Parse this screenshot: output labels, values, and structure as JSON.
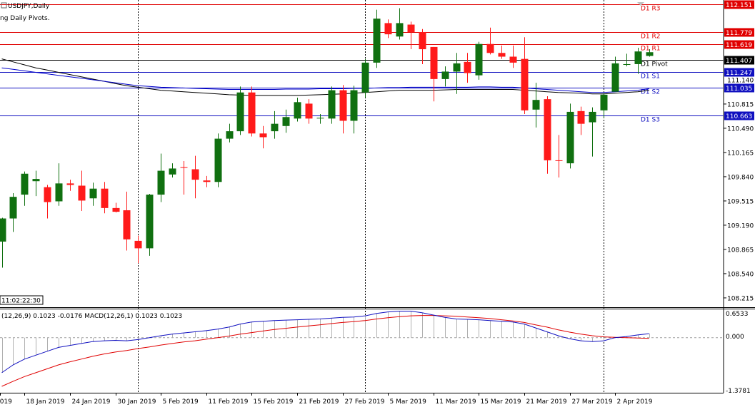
{
  "header": {
    "symbol_timeframe": "USDJPY,Daily",
    "indicator_name": "ng Daily Pivots.",
    "time_marker": "11:02:22:30"
  },
  "macd": {
    "label": "(12,26,9) 0.1023 -0.0176 MACD(12,26,1) 0.1023 0.1023",
    "ticks": [
      "0.6533",
      "0.000",
      "-1.3781"
    ]
  },
  "colors": {
    "bull": "#107010",
    "bear": "#ff1a1a",
    "resistance": "#e00000",
    "support": "#1010c0",
    "ma_black": "#000000",
    "ma_blue": "#0000c8",
    "macd_signal": "#e00000",
    "macd_main": "#1010c0"
  },
  "chart_data": {
    "type": "candlestick",
    "price_ticks": [
      "110.815",
      "110.490",
      "110.165",
      "109.840",
      "109.515",
      "109.190",
      "108.865",
      "108.540",
      "108.215"
    ],
    "date_labels": [
      "18 Jan 2019",
      "24 Jan 2019",
      "30 Jan 2019",
      "5 Feb 2019",
      "11 Feb 2019",
      "15 Feb 2019",
      "21 Feb 2019",
      "27 Feb 2019",
      "5 Mar 2019",
      "11 Mar 2019",
      "15 Mar 2019",
      "21 Mar 2019",
      "27 Mar 2019",
      "2 Apr 2019"
    ],
    "pivots": [
      {
        "label": "D1 R3",
        "value": 112.151,
        "tag": "112.151",
        "kind": "resistance"
      },
      {
        "label": "D1 R2",
        "value": 111.779,
        "tag": "111.779",
        "kind": "resistance"
      },
      {
        "label": "D1 R1",
        "value": 111.619,
        "tag": "111.619",
        "kind": "resistance"
      },
      {
        "label": "D1 Pivot",
        "value": 111.407,
        "tag": "111.407",
        "kind": "pivot"
      },
      {
        "label": "D1 S1",
        "value": 111.247,
        "tag": "111.247",
        "kind": "support"
      },
      {
        "label": "D1 S2",
        "value": 111.035,
        "tag": "111.035",
        "kind": "support"
      },
      {
        "label": "D1 S3",
        "value": 110.663,
        "tag": "110.663",
        "kind": "support"
      }
    ],
    "current_price": "111.407",
    "extra_price_label": "111.140",
    "ylim": [
      108.09,
      112.21
    ],
    "candles": [
      [
        108.97,
        109.28,
        108.62,
        109.29
      ],
      [
        109.28,
        109.57,
        109.1,
        109.62
      ],
      [
        109.6,
        109.88,
        109.45,
        109.91
      ],
      [
        109.78,
        109.81,
        109.58,
        109.92
      ],
      [
        109.7,
        109.5,
        109.28,
        109.73
      ],
      [
        109.51,
        109.75,
        109.45,
        110.02
      ],
      [
        109.75,
        109.73,
        109.65,
        109.8
      ],
      [
        109.72,
        109.52,
        109.38,
        109.92
      ],
      [
        109.55,
        109.68,
        109.45,
        109.76
      ],
      [
        109.68,
        109.42,
        109.35,
        109.77
      ],
      [
        109.42,
        109.37,
        109.36,
        109.49
      ],
      [
        109.39,
        109.0,
        108.85,
        109.64
      ],
      [
        108.98,
        108.88,
        108.68,
        109.05
      ],
      [
        108.88,
        109.6,
        108.78,
        109.61
      ],
      [
        109.6,
        109.92,
        109.5,
        110.15
      ],
      [
        109.87,
        109.95,
        109.83,
        110.02
      ],
      [
        109.97,
        109.96,
        109.6,
        110.05
      ],
      [
        109.94,
        109.8,
        109.55,
        110.12
      ],
      [
        109.79,
        109.77,
        109.7,
        109.85
      ],
      [
        109.77,
        110.35,
        109.7,
        110.42
      ],
      [
        110.35,
        110.45,
        110.3,
        110.55
      ],
      [
        110.45,
        110.97,
        110.4,
        111.05
      ],
      [
        110.97,
        110.42,
        110.38,
        111.05
      ],
      [
        110.42,
        110.37,
        110.22,
        110.52
      ],
      [
        110.45,
        110.55,
        110.35,
        110.72
      ],
      [
        110.52,
        110.64,
        110.43,
        110.74
      ],
      [
        110.62,
        110.84,
        110.58,
        110.9
      ],
      [
        110.82,
        110.62,
        110.55,
        110.88
      ],
      [
        110.63,
        110.63,
        110.55,
        110.68
      ],
      [
        110.62,
        111.0,
        110.55,
        111.05
      ],
      [
        111.0,
        110.59,
        110.42,
        111.07
      ],
      [
        110.59,
        111.0,
        110.42,
        111.06
      ],
      [
        110.97,
        111.37,
        110.9,
        111.42
      ],
      [
        111.37,
        111.96,
        111.3,
        112.08
      ],
      [
        111.9,
        111.75,
        111.7,
        111.95
      ],
      [
        111.72,
        111.9,
        111.68,
        112.1
      ],
      [
        111.88,
        111.78,
        111.55,
        111.92
      ],
      [
        111.78,
        111.55,
        111.35,
        111.82
      ],
      [
        111.58,
        111.15,
        110.85,
        111.58
      ],
      [
        111.15,
        111.25,
        111.05,
        111.32
      ],
      [
        111.25,
        111.36,
        110.95,
        111.5
      ],
      [
        111.38,
        111.23,
        111.1,
        111.5
      ],
      [
        111.2,
        111.62,
        111.14,
        111.65
      ],
      [
        111.62,
        111.5,
        111.48,
        111.84
      ],
      [
        111.5,
        111.45,
        111.42,
        111.6
      ],
      [
        111.45,
        111.37,
        111.3,
        111.6
      ],
      [
        111.42,
        110.73,
        110.68,
        111.71
      ],
      [
        110.74,
        110.87,
        110.5,
        111.1
      ],
      [
        110.88,
        110.06,
        109.88,
        110.92
      ],
      [
        110.06,
        110.05,
        109.83,
        110.4
      ],
      [
        110.02,
        110.71,
        109.95,
        110.82
      ],
      [
        110.72,
        110.55,
        110.4,
        110.78
      ],
      [
        110.57,
        110.71,
        110.11,
        110.77
      ],
      [
        110.73,
        110.94,
        110.63,
        110.96
      ],
      [
        110.98,
        111.36,
        110.98,
        111.45
      ],
      [
        111.34,
        111.35,
        111.32,
        111.49
      ],
      [
        111.35,
        111.52,
        111.22,
        111.57
      ],
      [
        111.46,
        111.51,
        111.45,
        111.55
      ]
    ],
    "ma_black": [
      111.42,
      111.38,
      111.34,
      111.3,
      111.27,
      111.24,
      111.21,
      111.18,
      111.15,
      111.12,
      111.09,
      111.06,
      111.04,
      111.02,
      111.0,
      110.99,
      110.98,
      110.97,
      110.96,
      110.95,
      110.94,
      110.935,
      110.93,
      110.93,
      110.93,
      110.93,
      110.93,
      110.935,
      110.94,
      110.945,
      110.95,
      110.96,
      110.97,
      110.98,
      110.99,
      111.0,
      111.0,
      111.0,
      111.0,
      111.005,
      111.01,
      111.01,
      111.01,
      111.01,
      111.01,
      111.01,
      111.0,
      110.99,
      110.98,
      110.97,
      110.965,
      110.96,
      110.95,
      110.95,
      110.96,
      110.97,
      110.98,
      111.0
    ],
    "ma_blue": [
      111.3,
      111.28,
      111.26,
      111.24,
      111.22,
      111.2,
      111.18,
      111.16,
      111.14,
      111.12,
      111.1,
      111.08,
      111.06,
      111.05,
      111.04,
      111.035,
      111.03,
      111.025,
      111.02,
      111.015,
      111.01,
      111.01,
      111.01,
      111.01,
      111.01,
      111.015,
      111.015,
      111.015,
      111.02,
      111.02,
      111.02,
      111.025,
      111.025,
      111.03,
      111.035,
      111.035,
      111.04,
      111.04,
      111.04,
      111.04,
      111.04,
      111.04,
      111.045,
      111.045,
      111.04,
      111.04,
      111.03,
      111.02,
      111.01,
      111.0,
      110.99,
      110.98,
      110.97,
      110.97,
      110.98,
      110.99,
      111.0,
      111.02
    ],
    "macd_main": [
      -0.9,
      -0.7,
      -0.55,
      -0.45,
      -0.35,
      -0.25,
      -0.2,
      -0.15,
      -0.1,
      -0.08,
      -0.07,
      -0.08,
      -0.05,
      0.0,
      0.05,
      0.09,
      0.12,
      0.15,
      0.18,
      0.22,
      0.27,
      0.35,
      0.4,
      0.42,
      0.44,
      0.45,
      0.46,
      0.47,
      0.48,
      0.5,
      0.52,
      0.53,
      0.56,
      0.62,
      0.66,
      0.68,
      0.68,
      0.64,
      0.58,
      0.52,
      0.48,
      0.47,
      0.46,
      0.44,
      0.42,
      0.4,
      0.35,
      0.25,
      0.15,
      0.05,
      -0.03,
      -0.08,
      -0.1,
      -0.08,
      0.0,
      0.03,
      0.07,
      0.1023
    ],
    "macd_signal": [
      -1.25,
      -1.12,
      -1.0,
      -0.9,
      -0.8,
      -0.7,
      -0.62,
      -0.55,
      -0.48,
      -0.42,
      -0.37,
      -0.33,
      -0.28,
      -0.24,
      -0.19,
      -0.15,
      -0.11,
      -0.08,
      -0.04,
      0.0,
      0.04,
      0.09,
      0.13,
      0.17,
      0.21,
      0.24,
      0.27,
      0.3,
      0.33,
      0.36,
      0.39,
      0.41,
      0.44,
      0.48,
      0.51,
      0.54,
      0.56,
      0.57,
      0.57,
      0.56,
      0.55,
      0.53,
      0.51,
      0.49,
      0.46,
      0.43,
      0.39,
      0.33,
      0.27,
      0.2,
      0.14,
      0.09,
      0.05,
      0.02,
      0.01,
      0.0,
      -0.01,
      -0.0176
    ],
    "macd_ylim": [
      -1.3781,
      0.6533
    ]
  }
}
